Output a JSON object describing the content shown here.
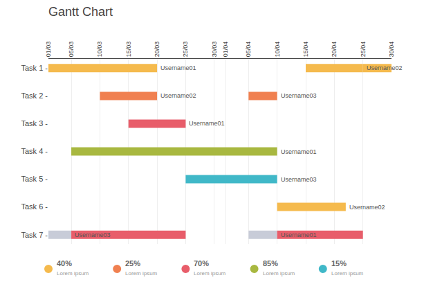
{
  "chart_data": {
    "type": "gantt",
    "title": "Gantt Chart",
    "orientation": "horizontal",
    "categories": [
      "Task 1 -",
      "Task 2 -",
      "Task 3 -",
      "Task 4 -",
      "Task 5 -",
      "Task 6 -",
      "Task 7 -"
    ],
    "xlim": [
      0,
      60
    ],
    "xticks": [
      {
        "value": 0,
        "label": "01/03"
      },
      {
        "value": 4,
        "label": "05/03"
      },
      {
        "value": 9,
        "label": "10/03"
      },
      {
        "value": 14,
        "label": "15/03"
      },
      {
        "value": 19,
        "label": "20/03"
      },
      {
        "value": 24,
        "label": "25/03"
      },
      {
        "value": 29,
        "label": "30/03"
      },
      {
        "value": 31,
        "label": "01/04"
      },
      {
        "value": 35,
        "label": "05/04"
      },
      {
        "value": 40,
        "label": "10/04"
      },
      {
        "value": 45,
        "label": "15/04"
      },
      {
        "value": 50,
        "label": "20/04"
      },
      {
        "value": 55,
        "label": "25/04"
      },
      {
        "value": 60,
        "label": "30/04"
      }
    ],
    "grid": true,
    "bars": [
      [
        {
          "start": 0,
          "end": 19,
          "color": "#F5BA4D",
          "label": "Username01"
        },
        {
          "start": 45,
          "end": 55,
          "color": "#F5BA4D",
          "label": "Username02"
        },
        {
          "start": 55,
          "end": 60,
          "color": "#F5BA4D"
        }
      ],
      [
        {
          "start": 9,
          "end": 19,
          "color": "#F08050",
          "label": "Username02"
        },
        {
          "start": 35,
          "end": 40,
          "color": "#F08050",
          "label": "Username03"
        }
      ],
      [
        {
          "start": 14,
          "end": 24,
          "color": "#E85D6A",
          "label": "Username01"
        }
      ],
      [
        {
          "start": 4,
          "end": 40,
          "color": "#A8B840",
          "label": "Username01"
        }
      ],
      [
        {
          "start": 24,
          "end": 40,
          "color": "#40B8C8",
          "label": "Username03"
        }
      ],
      [
        {
          "start": 40,
          "end": 52,
          "color": "#F5BA4D",
          "label": "Username02"
        }
      ],
      [
        {
          "start": 0,
          "end": 4,
          "color": "#c8ccd8",
          "label": "Username03"
        },
        {
          "start": 4,
          "end": 24,
          "color": "#E85D6A"
        },
        {
          "start": 35,
          "end": 40,
          "color": "#c8ccd8",
          "label": "Username01"
        },
        {
          "start": 40,
          "end": 55,
          "color": "#E85D6A"
        }
      ]
    ],
    "legend": "bottom",
    "legend_items": [
      {
        "label": "40%",
        "name": "Lorem ipsum",
        "color": "#F5BA4D"
      },
      {
        "label": "25%",
        "name": "Lorem ipsum",
        "color": "#F08050"
      },
      {
        "label": "70%",
        "name": "Lorem ipsum",
        "color": "#E85D6A"
      },
      {
        "label": "85%",
        "name": "Lorem ipsum",
        "color": "#A8B840"
      },
      {
        "label": "15%",
        "name": "Lorem ipsum",
        "color": "#40B8C8"
      }
    ]
  }
}
